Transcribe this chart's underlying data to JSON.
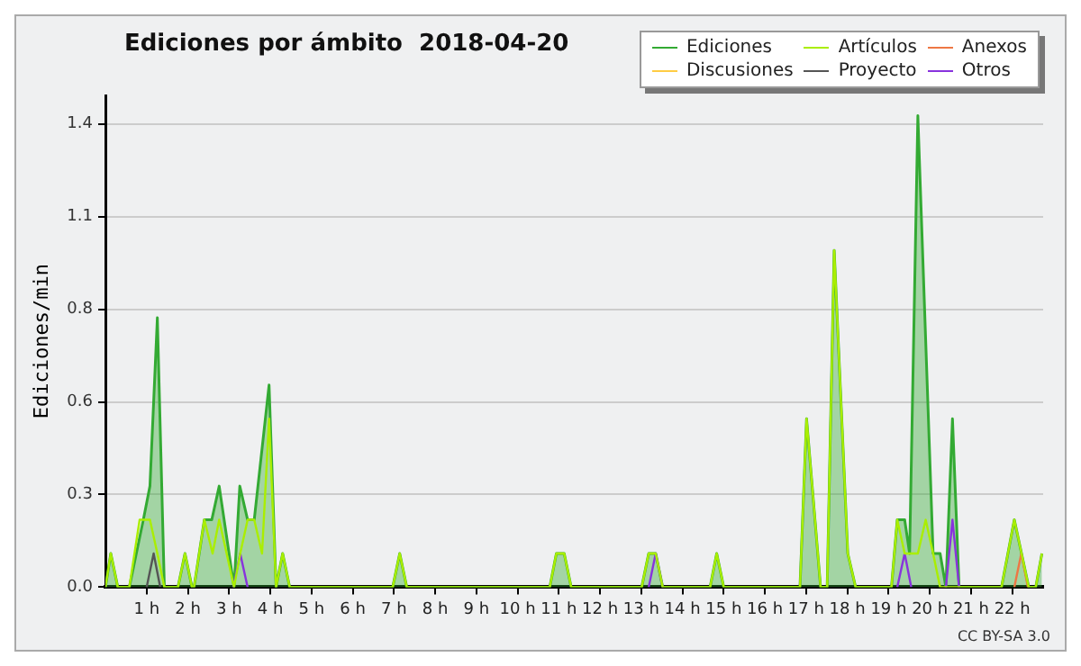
{
  "chart_data": {
    "type": "line",
    "title": "Ediciones por ámbito  2018-04-20",
    "ylabel": "Ediciones/min",
    "xlim": [
      0,
      22.75
    ],
    "xticks": [
      {
        "value": 1,
        "label": "1 h"
      },
      {
        "value": 2,
        "label": "2 h"
      },
      {
        "value": 3,
        "label": "3 h"
      },
      {
        "value": 4,
        "label": "4 h"
      },
      {
        "value": 5,
        "label": "5 h"
      },
      {
        "value": 6,
        "label": "6 h"
      },
      {
        "value": 7,
        "label": "7 h"
      },
      {
        "value": 8,
        "label": "8 h"
      },
      {
        "value": 9,
        "label": "9 h"
      },
      {
        "value": 10,
        "label": "10 h"
      },
      {
        "value": 11,
        "label": "11 h"
      },
      {
        "value": 12,
        "label": "12 h"
      },
      {
        "value": 13,
        "label": "13 h"
      },
      {
        "value": 14,
        "label": "14 h"
      },
      {
        "value": 15,
        "label": "15 h"
      },
      {
        "value": 16,
        "label": "16 h"
      },
      {
        "value": 17,
        "label": "17 h"
      },
      {
        "value": 18,
        "label": "18 h"
      },
      {
        "value": 19,
        "label": "19 h"
      },
      {
        "value": 20,
        "label": "20 h"
      },
      {
        "value": 21,
        "label": "21 h"
      },
      {
        "value": 22,
        "label": "22 h"
      }
    ],
    "ylim": [
      0,
      1.46
    ],
    "yticks": [
      {
        "value": 0,
        "label": "0.0"
      },
      {
        "value": 0.275,
        "label": "0.3"
      },
      {
        "value": 0.55,
        "label": "0.6"
      },
      {
        "value": 0.825,
        "label": "0.8"
      },
      1.1,
      {
        "value": 1.375,
        "label": "1.4"
      }
    ],
    "grid": "y",
    "legend": "top right",
    "series": [
      {
        "name": "Ediciones",
        "type": "area",
        "color": "#33aa33",
        "x": [
          0,
          0.13,
          0.3,
          0.58,
          0.92,
          1.08,
          1.26,
          1.43,
          1.76,
          1.93,
          2.1,
          2.15,
          2.4,
          2.58,
          2.76,
          3.12,
          3.26,
          3.45,
          3.61,
          3.97,
          4.14,
          4.3,
          4.47,
          6.97,
          7.14,
          7.31,
          10.78,
          10.94,
          11.13,
          11.3,
          13.01,
          13.18,
          13.35,
          13.52,
          14.67,
          14.83,
          15.0,
          16.85,
          17.01,
          17.35,
          17.51,
          17.68,
          18.01,
          18.2,
          19.07,
          19.21,
          19.39,
          19.51,
          19.71,
          20.08,
          20.25,
          20.39,
          20.55,
          20.71,
          21.74,
          22.05,
          22.4,
          22.57,
          22.72
        ],
        "values": [
          0,
          0.1,
          0,
          0,
          0.2,
          0.3,
          0.8,
          0,
          0,
          0.1,
          0,
          0,
          0.2,
          0.2,
          0.3,
          0,
          0.3,
          0.2,
          0.2,
          0.6,
          0,
          0.1,
          0,
          0,
          0.1,
          0,
          0,
          0.1,
          0.1,
          0,
          0,
          0.1,
          0.1,
          0,
          0,
          0.1,
          0,
          0,
          0.5,
          0,
          0,
          1.0,
          0.1,
          0,
          0,
          0.2,
          0.2,
          0.1,
          1.4,
          0.1,
          0.1,
          0,
          0.5,
          0,
          0,
          0.2,
          0,
          0,
          0.1
        ]
      },
      {
        "name": "Artículos",
        "color": "#aaee00",
        "x": [
          0,
          0.13,
          0.3,
          0.58,
          0.83,
          1.08,
          1.26,
          1.43,
          1.76,
          1.93,
          2.1,
          2.15,
          2.4,
          2.6,
          2.76,
          3.12,
          3.27,
          3.45,
          3.61,
          3.8,
          3.97,
          4.14,
          4.3,
          4.47,
          6.97,
          7.14,
          7.31,
          10.78,
          10.94,
          11.13,
          11.3,
          13.01,
          13.18,
          13.35,
          13.52,
          14.67,
          14.83,
          15.0,
          16.85,
          17.01,
          17.35,
          17.51,
          17.68,
          18.01,
          18.2,
          19.07,
          19.21,
          19.39,
          19.71,
          19.9,
          20.08,
          20.25,
          21.74,
          22.05,
          22.4,
          22.57,
          22.72
        ],
        "values": [
          0,
          0.1,
          0,
          0,
          0.2,
          0.2,
          0.1,
          0,
          0,
          0.1,
          0,
          0,
          0.2,
          0.1,
          0.2,
          0,
          0.1,
          0.2,
          0.2,
          0.1,
          0.5,
          0,
          0.1,
          0,
          0,
          0.1,
          0,
          0,
          0.1,
          0.1,
          0,
          0,
          0.1,
          0.1,
          0,
          0,
          0.1,
          0,
          0,
          0.5,
          0,
          0,
          1.0,
          0.1,
          0,
          0,
          0.2,
          0.1,
          0.1,
          0.2,
          0.1,
          0,
          0,
          0.2,
          0,
          0,
          0.1
        ]
      },
      {
        "name": "Anexos",
        "color": "#ee7744",
        "x": [
          22.05,
          22.22,
          22.38
        ],
        "values": [
          0,
          0.1,
          0
        ]
      },
      {
        "name": "Discusiones",
        "color": "#ffcc44"
      },
      {
        "name": "Proyecto",
        "color": "#555555",
        "x": [
          1.0,
          1.17,
          1.33
        ],
        "values": [
          0,
          0.1,
          0
        ]
      },
      {
        "name": "Otros",
        "color": "#8833dd",
        "x": [
          3.1,
          3.27,
          3.45,
          8,
          13.18,
          13.35,
          13.52,
          16,
          19.21,
          19.39,
          19.55,
          20,
          20.39,
          20.55,
          20.71
        ],
        "values": [
          0,
          0.1,
          0,
          null,
          0,
          0.1,
          0,
          null,
          0,
          0.1,
          0,
          null,
          0,
          0.2,
          0
        ]
      }
    ],
    "annotations": [
      "CC BY-SA 3.0"
    ]
  }
}
